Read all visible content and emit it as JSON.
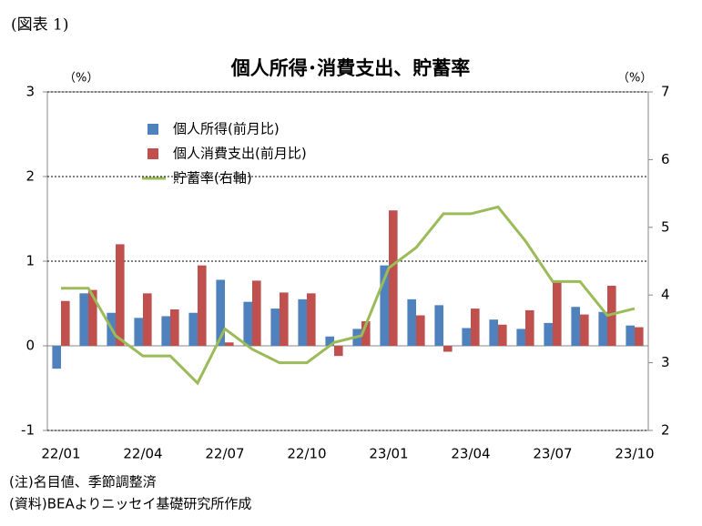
{
  "figure_label": "(図表 1)",
  "chart_data": {
    "type": "bar_line",
    "title": "個人所得･消費支出、貯蓄率",
    "y_unit": "（%）",
    "y2_unit": "（%）",
    "categories": [
      "22/01",
      null,
      null,
      "22/04",
      null,
      null,
      "22/07",
      null,
      null,
      "22/10",
      null,
      null,
      "23/01",
      null,
      null,
      "23/04",
      null,
      null,
      "23/07",
      null,
      null,
      "23/10"
    ],
    "series": [
      {
        "name": "個人所得(前月比)",
        "type": "bar",
        "color": "#4f81bd",
        "values": [
          -0.27,
          0.62,
          0.39,
          0.33,
          0.35,
          0.39,
          0.78,
          0.52,
          0.44,
          0.55,
          0.11,
          0.2,
          0.95,
          0.55,
          0.48,
          0.21,
          0.31,
          0.2,
          0.27,
          0.46,
          0.4,
          0.24
        ]
      },
      {
        "name": "個人消費支出(前月比)",
        "type": "bar",
        "color": "#c0504d",
        "values": [
          0.53,
          0.66,
          1.2,
          0.62,
          0.43,
          0.95,
          0.04,
          0.77,
          0.63,
          0.62,
          -0.12,
          0.29,
          1.6,
          0.36,
          -0.07,
          0.44,
          0.25,
          0.42,
          0.75,
          0.37,
          0.71,
          0.22
        ]
      },
      {
        "name": "貯蓄率(右軸)",
        "type": "line",
        "axis": "y2",
        "color": "#9bbb59",
        "values": [
          4.1,
          4.1,
          3.4,
          3.1,
          3.1,
          2.7,
          3.5,
          3.2,
          3.0,
          3.0,
          3.3,
          3.4,
          4.4,
          4.7,
          5.2,
          5.2,
          5.3,
          4.8,
          4.2,
          4.2,
          3.7,
          3.8
        ]
      }
    ],
    "ylim": [
      -1,
      3
    ],
    "yticks": [
      -1,
      0,
      1,
      2,
      3
    ],
    "y2lim": [
      2,
      7
    ],
    "y2ticks": [
      2,
      3,
      4,
      5,
      6,
      7
    ],
    "grid": true,
    "legend": "upper left"
  },
  "notes": [
    "(注)名目値、季節調整済",
    "(資料)BEAよりニッセイ基礎研究所作成"
  ]
}
